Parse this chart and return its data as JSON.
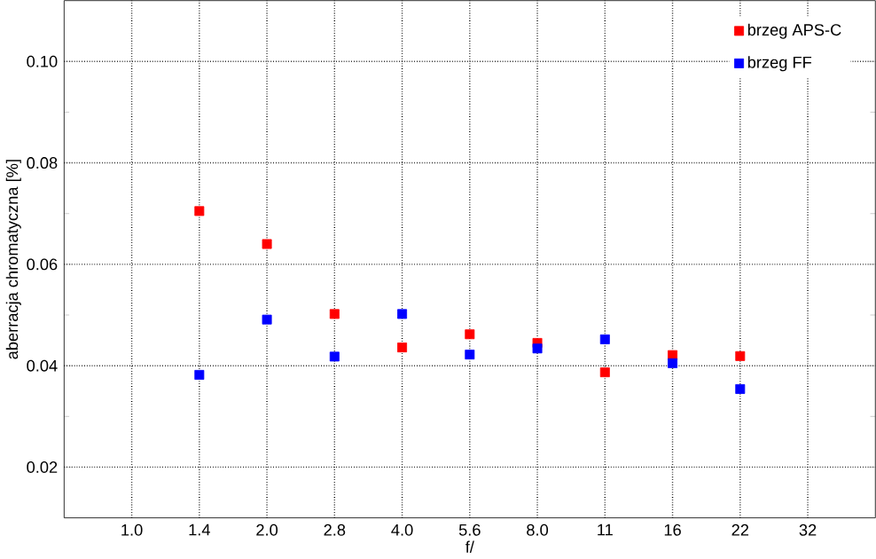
{
  "chart_data": {
    "type": "scatter",
    "xlabel": "f/",
    "ylabel": "aberracja chromatyczna [%]",
    "categories": [
      "1.0",
      "1.4",
      "2.0",
      "2.8",
      "4.0",
      "5.6",
      "8.0",
      "11",
      "16",
      "22",
      "32"
    ],
    "series": [
      {
        "name": "brzeg APS-C",
        "color": "#ff0000",
        "values": [
          null,
          0.0705,
          0.064,
          0.0502,
          0.0436,
          0.0462,
          0.0445,
          0.0387,
          0.0421,
          0.0419,
          null
        ]
      },
      {
        "name": "brzeg FF",
        "color": "#0000ff",
        "values": [
          null,
          0.0382,
          0.0491,
          0.0418,
          0.0502,
          0.0422,
          0.0434,
          0.0452,
          0.0405,
          0.0354,
          null
        ]
      }
    ],
    "ylim": [
      0.01,
      0.112
    ],
    "yticks": [
      0.02,
      0.04,
      0.06,
      0.08,
      {
        "value": 0.1,
        "label": "0.10"
      }
    ],
    "grid": true,
    "legend": "top right",
    "marker": "square"
  }
}
